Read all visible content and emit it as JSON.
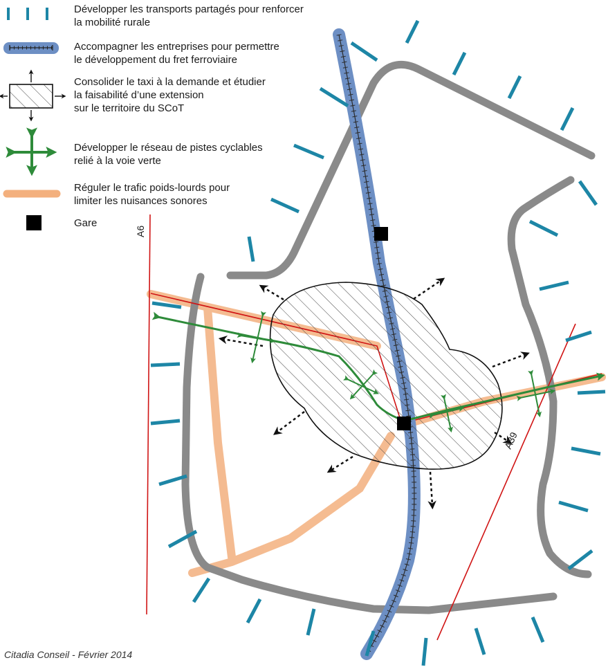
{
  "colors": {
    "rural_transport_dash": "#1d86a6",
    "rail_band": "#6d8fc4",
    "rail_track": "#2b2b2b",
    "road_grey": "#8a8a8a",
    "bike_green": "#2e8b3a",
    "heavy_traffic": "#f3b07e",
    "motorway_red": "#d01414",
    "station": "#000000"
  },
  "legend": {
    "items": [
      {
        "icon": "blue-dash-icon",
        "lines": [
          "Développer les transports partagés pour renforcer",
          "la mobilité rurale"
        ]
      },
      {
        "icon": "rail-band-icon",
        "lines": [
          "Accompagner les entreprises pour permettre",
          "le développement du fret ferroviaire"
        ]
      },
      {
        "icon": "hatched-box-icon",
        "lines": [
          "Consolider le taxi à la demande et étudier",
          "la faisabilité d’une extension",
          "sur le territoire du SCoT"
        ]
      },
      {
        "icon": "green-cross-arrows-icon",
        "lines": [
          "Développer le réseau de pistes cyclables",
          "relié à la voie verte"
        ]
      },
      {
        "icon": "orange-band-icon",
        "lines": [
          "Réguler le trafic poids-lourds pour",
          "limiter les nuisances sonores"
        ]
      },
      {
        "icon": "black-square-icon",
        "lines": [
          "Gare"
        ]
      }
    ]
  },
  "labels": {
    "a6": "A6",
    "a39": "A39"
  },
  "credit": "Citadia Conseil - Février 2014"
}
